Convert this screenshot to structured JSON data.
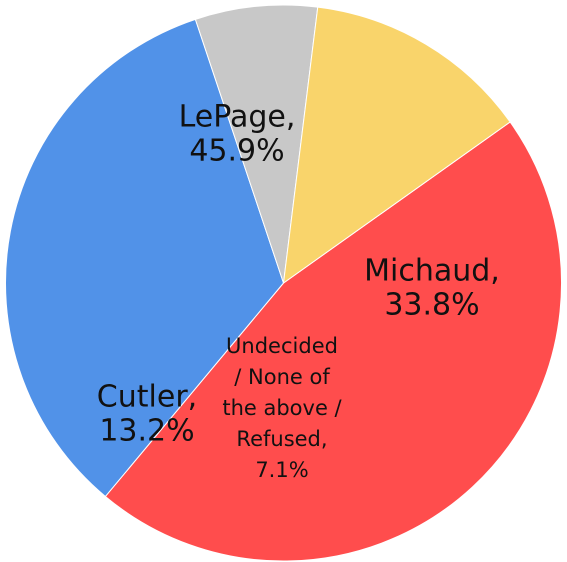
{
  "chart_data": {
    "type": "pie",
    "slices": [
      {
        "label": "LePage",
        "value": 45.9,
        "label_lines": [
          "LePage,",
          "45.9%"
        ],
        "color": "#ff4d4d"
      },
      {
        "label": "Michaud",
        "value": 33.8,
        "label_lines": [
          "Michaud,",
          "33.8%"
        ],
        "color": "#5192e8"
      },
      {
        "label": "Undecided / None of the above / Refused",
        "value": 7.1,
        "label_lines": [
          "Undecided",
          "/ None of",
          "the above /",
          "Refused,",
          "7.1%"
        ],
        "color": "#c8c8c8"
      },
      {
        "label": "Cutler",
        "value": 13.2,
        "label_lines": [
          "Cutler,",
          "13.2%"
        ],
        "color": "#f9d46b"
      }
    ]
  }
}
